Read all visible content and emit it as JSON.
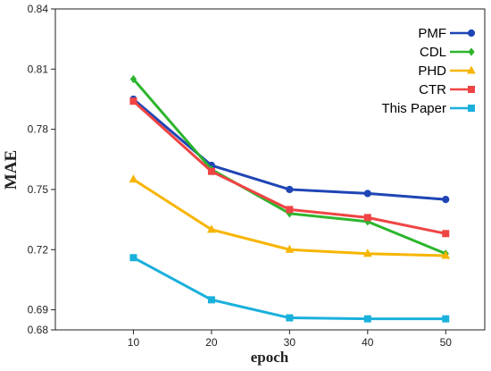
{
  "chart_data": {
    "type": "line",
    "xlabel": "epoch",
    "ylabel": "MAE",
    "x": [
      10,
      20,
      30,
      40,
      50
    ],
    "xticks": [
      "10",
      "20",
      "30",
      "40",
      "50"
    ],
    "xlim": [
      0,
      55
    ],
    "ylim": [
      0.68,
      0.84
    ],
    "yticks": [
      "0.84",
      "0.81",
      "0.78",
      "0.75",
      "0.72",
      "0.69",
      "0.68"
    ],
    "legend_position": "top-right",
    "grid": false,
    "series": [
      {
        "name": "PMF",
        "color": "#1f45b5",
        "marker": "circle",
        "values": [
          0.795,
          0.762,
          0.75,
          0.748,
          0.745
        ]
      },
      {
        "name": "CDL",
        "color": "#2db52d",
        "marker": "diamond",
        "values": [
          0.805,
          0.76,
          0.738,
          0.734,
          0.718
        ]
      },
      {
        "name": "PHD",
        "color": "#f7b500",
        "marker": "triangle",
        "values": [
          0.755,
          0.73,
          0.72,
          0.718,
          0.717
        ]
      },
      {
        "name": "CTR",
        "color": "#ef4444",
        "marker": "square",
        "values": [
          0.794,
          0.759,
          0.74,
          0.736,
          0.728
        ]
      },
      {
        "name": "This Paper",
        "color": "#1ab0dc",
        "marker": "square",
        "values": [
          0.716,
          0.695,
          0.686,
          0.6855,
          0.6855
        ]
      }
    ]
  }
}
